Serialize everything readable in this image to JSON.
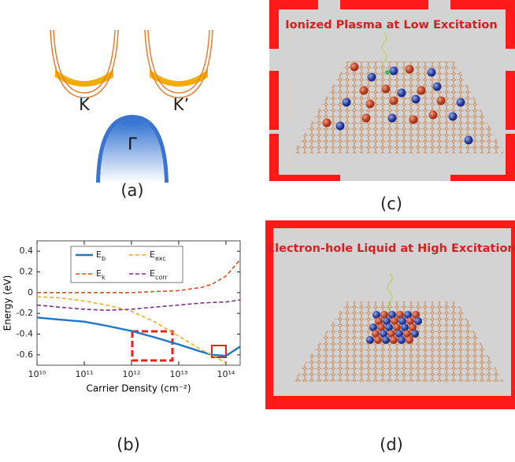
{
  "panels": {
    "a": {
      "label": "(a)",
      "valleys": [
        "K",
        "K’"
      ],
      "center": "Γ"
    },
    "b": {
      "label": "(b)"
    },
    "c": {
      "label": "(c)",
      "title": "Ionized Plasma at Low Excitation"
    },
    "d": {
      "label": "(d)",
      "title": "Electron-hole Liquid at High Excitation"
    }
  },
  "chart_data": {
    "type": "line",
    "x_label": "Carrier Density (cm⁻²)",
    "y_label": "Energy (eV)",
    "xscale": "log",
    "xlim": [
      10000000000,
      200000000000000
    ],
    "xticks": [
      {
        "value": 10000000000,
        "label": "10¹⁰"
      },
      {
        "value": 100000000000,
        "label": "10¹¹"
      },
      {
        "value": 1000000000000,
        "label": "10¹²"
      },
      {
        "value": 10000000000000,
        "label": "10¹³"
      },
      {
        "value": 100000000000000,
        "label": "10¹⁴"
      }
    ],
    "ylim": [
      -0.7,
      0.5
    ],
    "yticks": [
      -0.6,
      -0.4,
      -0.2,
      0,
      0.2,
      0.4
    ],
    "legend_position": "upper left",
    "x": [
      10000000000,
      30000000000,
      100000000000,
      300000000000,
      1000000000000,
      3000000000000,
      10000000000000,
      30000000000000,
      50000000000000,
      100000000000000,
      200000000000000
    ],
    "series": [
      {
        "name": "E_b",
        "color": "#1f77c4",
        "dash": false,
        "values": [
          -0.24,
          -0.26,
          -0.28,
          -0.32,
          -0.37,
          -0.43,
          -0.5,
          -0.57,
          -0.6,
          -0.61,
          -0.52
        ]
      },
      {
        "name": "E_exc",
        "color": "#edb120",
        "dash": true,
        "values": [
          -0.04,
          -0.05,
          -0.08,
          -0.12,
          -0.18,
          -0.28,
          -0.42,
          -0.55,
          -0.6,
          -0.68,
          null
        ]
      },
      {
        "name": "E_k",
        "color": "#d95319",
        "dash": true,
        "values": [
          0,
          0,
          0,
          0,
          0,
          0.01,
          0.02,
          0.05,
          0.08,
          0.16,
          0.32
        ]
      },
      {
        "name": "E_corr",
        "color": "#7e2f8e",
        "dash": true,
        "values": [
          -0.12,
          -0.14,
          -0.16,
          -0.17,
          -0.16,
          -0.14,
          -0.12,
          -0.1,
          -0.095,
          -0.09,
          -0.07
        ]
      }
    ]
  }
}
